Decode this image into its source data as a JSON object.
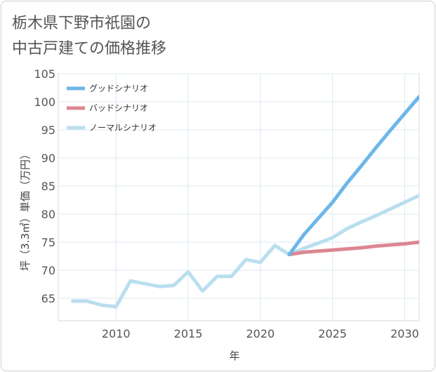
{
  "title_line1": "栃木県下野市祇園の",
  "title_line2": "中古戸建ての価格推移",
  "chart_data": {
    "type": "line",
    "title": "栃木県下野市祇園の中古戸建ての価格推移",
    "xlabel": "年",
    "ylabel": "坪（3.3㎡）単価（万円）",
    "xlim": [
      2006,
      2031
    ],
    "ylim": [
      61,
      105
    ],
    "xticks": [
      2010,
      2015,
      2020,
      2025,
      2030
    ],
    "yticks": [
      65,
      70,
      75,
      80,
      85,
      90,
      95,
      100,
      105
    ],
    "grid": true,
    "legend_position": "top-left",
    "series": [
      {
        "name": "グッドシナリオ",
        "color": "#6cb6ea",
        "x": [
          2022,
          2023,
          2024,
          2025,
          2026,
          2027,
          2028,
          2029,
          2030,
          2031
        ],
        "y": [
          72.8,
          76.3,
          79.2,
          82.1,
          85.5,
          88.6,
          91.8,
          94.9,
          97.9,
          100.9
        ]
      },
      {
        "name": "バッドシナリオ",
        "color": "#dc8791",
        "x": [
          2022,
          2023,
          2024,
          2025,
          2026,
          2027,
          2028,
          2029,
          2030,
          2031
        ],
        "y": [
          72.8,
          73.2,
          73.4,
          73.6,
          73.8,
          74.0,
          74.3,
          74.5,
          74.7,
          75.0
        ]
      },
      {
        "name": "ノーマルシナリオ",
        "color": "#b9dfee",
        "x": [
          2007,
          2008,
          2009,
          2010,
          2011,
          2012,
          2013,
          2014,
          2015,
          2016,
          2017,
          2018,
          2019,
          2020,
          2021,
          2022,
          2023,
          2024,
          2025,
          2026,
          2027,
          2028,
          2029,
          2030,
          2031
        ],
        "y": [
          64.5,
          64.5,
          63.8,
          63.5,
          68.1,
          67.6,
          67.1,
          67.3,
          69.7,
          66.3,
          68.9,
          68.9,
          71.9,
          71.4,
          74.4,
          72.8,
          73.9,
          74.8,
          75.8,
          77.4,
          78.6,
          79.7,
          80.9,
          82.1,
          83.3
        ]
      }
    ]
  }
}
